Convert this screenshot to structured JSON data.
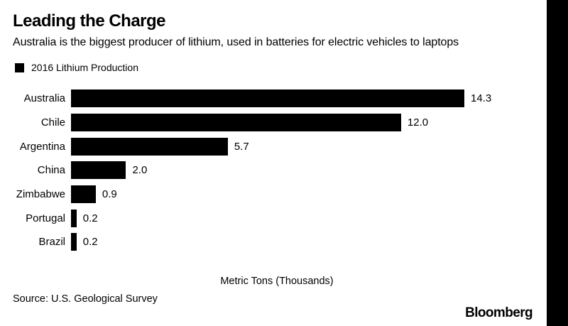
{
  "meta": {
    "background_color": "#ffffff",
    "bar_color": "#000000",
    "text_color": "#000000",
    "right_strip_color": "#000000"
  },
  "header": {
    "title": "Leading the Charge",
    "subtitle": "Australia is the biggest producer of lithium, used in batteries for electric vehicles to laptops"
  },
  "legend": {
    "label": "2016 Lithium Production",
    "swatch_color": "#000000"
  },
  "chart_data": {
    "type": "bar",
    "orientation": "horizontal",
    "title": "Leading the Charge",
    "subtitle": "Australia is the biggest producer of lithium, used in batteries for electric vehicles to laptops",
    "legend_entries": [
      "2016 Lithium Production"
    ],
    "legend_position": "top-left",
    "grid": false,
    "categories": [
      "Australia",
      "Chile",
      "Argentina",
      "China",
      "Zimbabwe",
      "Portugal",
      "Brazil"
    ],
    "values": [
      14.3,
      12.0,
      5.7,
      2.0,
      0.9,
      0.2,
      0.2
    ],
    "value_labels": [
      "14.3",
      "12.0",
      "5.7",
      "2.0",
      "0.9",
      "0.2",
      "0.2"
    ],
    "xlabel": "Metric Tons (Thousands)",
    "ylabel": "",
    "bar_color": "#000000"
  },
  "footer": {
    "source": "Source: U.S. Geological Survey",
    "brand": "Bloomberg"
  }
}
